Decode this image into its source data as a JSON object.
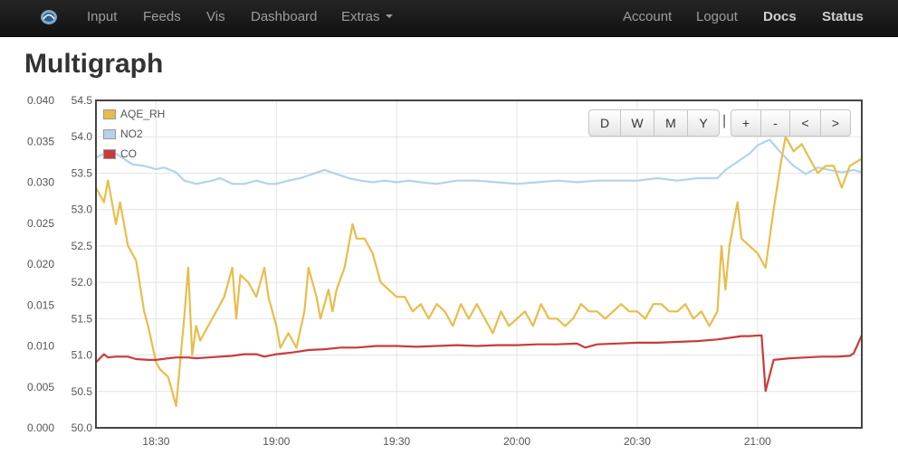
{
  "nav": {
    "left": [
      {
        "label": "Input",
        "name": "nav-input"
      },
      {
        "label": "Feeds",
        "name": "nav-feeds"
      },
      {
        "label": "Vis",
        "name": "nav-vis"
      },
      {
        "label": "Dashboard",
        "name": "nav-dashboard"
      },
      {
        "label": "Extras",
        "name": "nav-extras"
      }
    ],
    "right": [
      {
        "label": "Account",
        "name": "nav-account"
      },
      {
        "label": "Logout",
        "name": "nav-logout"
      },
      {
        "label": "Docs",
        "name": "nav-docs"
      },
      {
        "label": "Status",
        "name": "nav-status"
      }
    ],
    "logo_icon": "emoncms-logo-icon"
  },
  "page_title": "Multigraph",
  "range_buttons": [
    "D",
    "W",
    "M",
    "Y"
  ],
  "nav_buttons": [
    "+",
    "-",
    "<",
    ">"
  ],
  "separator": "|",
  "colors": {
    "AQE_RH": "#e8bd4a",
    "NO2": "#b1d3ec",
    "CO": "#c93b3b",
    "navbar": "#1b1b1b"
  },
  "chart_data": {
    "type": "line",
    "title": "",
    "x_ticks": [
      "18:30",
      "19:00",
      "19:30",
      "20:00",
      "20:30",
      "21:00"
    ],
    "left_axis_ticks": [
      "0.040",
      "0.035",
      "0.030",
      "0.025",
      "0.020",
      "0.015",
      "0.010",
      "0.005",
      "0.000"
    ],
    "right_axis_ticks": [
      "54.5",
      "54.0",
      "53.5",
      "53.0",
      "52.5",
      "52.0",
      "51.5",
      "51.0",
      "50.5",
      "50.0"
    ],
    "xlim": [
      "18:15",
      "21:26"
    ],
    "left_ylim": [
      0,
      0.04
    ],
    "right_ylim": [
      50,
      54.5
    ],
    "grid": true,
    "legend_position": "top-left",
    "series": [
      {
        "name": "AQE_RH",
        "axis": "right",
        "points": [
          [
            "18:15",
            53.3
          ],
          [
            "18:17",
            53.1
          ],
          [
            "18:18",
            53.4
          ],
          [
            "18:20",
            52.8
          ],
          [
            "18:21",
            53.1
          ],
          [
            "18:23",
            52.5
          ],
          [
            "18:25",
            52.3
          ],
          [
            "18:27",
            51.6
          ],
          [
            "18:28",
            51.4
          ],
          [
            "18:30",
            50.9
          ],
          [
            "18:31",
            50.8
          ],
          [
            "18:33",
            50.7
          ],
          [
            "18:34",
            50.5
          ],
          [
            "18:35",
            50.3
          ],
          [
            "18:37",
            51.5
          ],
          [
            "18:38",
            52.2
          ],
          [
            "18:39",
            51.0
          ],
          [
            "18:40",
            51.4
          ],
          [
            "18:41",
            51.2
          ],
          [
            "18:43",
            51.4
          ],
          [
            "18:45",
            51.6
          ],
          [
            "18:47",
            51.8
          ],
          [
            "18:49",
            52.2
          ],
          [
            "18:50",
            51.5
          ],
          [
            "18:51",
            52.1
          ],
          [
            "18:53",
            52.0
          ],
          [
            "18:55",
            51.8
          ],
          [
            "18:57",
            52.2
          ],
          [
            "18:58",
            51.8
          ],
          [
            "19:00",
            51.4
          ],
          [
            "19:01",
            51.1
          ],
          [
            "19:03",
            51.3
          ],
          [
            "19:05",
            51.1
          ],
          [
            "19:07",
            51.6
          ],
          [
            "19:08",
            52.2
          ],
          [
            "19:10",
            51.8
          ],
          [
            "19:11",
            51.5
          ],
          [
            "19:13",
            51.9
          ],
          [
            "19:14",
            51.6
          ],
          [
            "19:15",
            51.9
          ],
          [
            "19:17",
            52.2
          ],
          [
            "19:19",
            52.8
          ],
          [
            "19:20",
            52.6
          ],
          [
            "19:22",
            52.6
          ],
          [
            "19:24",
            52.4
          ],
          [
            "19:26",
            52.0
          ],
          [
            "19:28",
            51.9
          ],
          [
            "19:30",
            51.8
          ],
          [
            "19:32",
            51.8
          ],
          [
            "19:34",
            51.6
          ],
          [
            "19:36",
            51.7
          ],
          [
            "19:38",
            51.5
          ],
          [
            "19:40",
            51.7
          ],
          [
            "19:42",
            51.6
          ],
          [
            "19:44",
            51.4
          ],
          [
            "19:46",
            51.7
          ],
          [
            "19:48",
            51.5
          ],
          [
            "19:50",
            51.7
          ],
          [
            "19:52",
            51.5
          ],
          [
            "19:54",
            51.3
          ],
          [
            "19:56",
            51.6
          ],
          [
            "19:58",
            51.4
          ],
          [
            "20:00",
            51.5
          ],
          [
            "20:02",
            51.6
          ],
          [
            "20:04",
            51.4
          ],
          [
            "20:06",
            51.7
          ],
          [
            "20:08",
            51.5
          ],
          [
            "20:10",
            51.5
          ],
          [
            "20:12",
            51.4
          ],
          [
            "20:14",
            51.5
          ],
          [
            "20:16",
            51.7
          ],
          [
            "20:18",
            51.6
          ],
          [
            "20:20",
            51.6
          ],
          [
            "20:22",
            51.5
          ],
          [
            "20:24",
            51.6
          ],
          [
            "20:26",
            51.7
          ],
          [
            "20:28",
            51.6
          ],
          [
            "20:30",
            51.6
          ],
          [
            "20:32",
            51.5
          ],
          [
            "20:34",
            51.7
          ],
          [
            "20:36",
            51.7
          ],
          [
            "20:38",
            51.6
          ],
          [
            "20:40",
            51.6
          ],
          [
            "20:42",
            51.7
          ],
          [
            "20:44",
            51.5
          ],
          [
            "20:46",
            51.6
          ],
          [
            "20:48",
            51.4
          ],
          [
            "20:50",
            51.6
          ],
          [
            "20:51",
            52.5
          ],
          [
            "20:52",
            51.9
          ],
          [
            "20:53",
            52.5
          ],
          [
            "20:55",
            53.1
          ],
          [
            "20:56",
            52.6
          ],
          [
            "20:58",
            52.5
          ],
          [
            "21:00",
            52.4
          ],
          [
            "21:02",
            52.2
          ],
          [
            "21:04",
            53.0
          ],
          [
            "21:06",
            53.7
          ],
          [
            "21:07",
            54.0
          ],
          [
            "21:09",
            53.8
          ],
          [
            "21:11",
            53.9
          ],
          [
            "21:13",
            53.7
          ],
          [
            "21:15",
            53.5
          ],
          [
            "21:17",
            53.6
          ],
          [
            "21:19",
            53.6
          ],
          [
            "21:21",
            53.3
          ],
          [
            "21:23",
            53.6
          ],
          [
            "21:26",
            53.7
          ]
        ]
      },
      {
        "name": "NO2",
        "axis": "left",
        "points": [
          [
            "18:15",
            0.033
          ],
          [
            "18:17",
            0.0335
          ],
          [
            "18:20",
            0.0335
          ],
          [
            "18:24",
            0.0322
          ],
          [
            "18:27",
            0.032
          ],
          [
            "18:30",
            0.0316
          ],
          [
            "18:32",
            0.0318
          ],
          [
            "18:35",
            0.0312
          ],
          [
            "18:37",
            0.0302
          ],
          [
            "18:40",
            0.0298
          ],
          [
            "18:44",
            0.0302
          ],
          [
            "18:46",
            0.0305
          ],
          [
            "18:49",
            0.0298
          ],
          [
            "18:52",
            0.0298
          ],
          [
            "18:55",
            0.0302
          ],
          [
            "18:58",
            0.0298
          ],
          [
            "19:00",
            0.0298
          ],
          [
            "19:03",
            0.0302
          ],
          [
            "19:06",
            0.0305
          ],
          [
            "19:09",
            0.031
          ],
          [
            "19:12",
            0.0315
          ],
          [
            "19:15",
            0.031
          ],
          [
            "19:18",
            0.0305
          ],
          [
            "19:21",
            0.0302
          ],
          [
            "19:24",
            0.03
          ],
          [
            "19:27",
            0.0302
          ],
          [
            "19:30",
            0.03
          ],
          [
            "19:33",
            0.0302
          ],
          [
            "19:36",
            0.03
          ],
          [
            "19:40",
            0.0298
          ],
          [
            "19:45",
            0.0302
          ],
          [
            "19:50",
            0.0302
          ],
          [
            "19:55",
            0.03
          ],
          [
            "20:00",
            0.0298
          ],
          [
            "20:05",
            0.03
          ],
          [
            "20:10",
            0.0302
          ],
          [
            "20:15",
            0.03
          ],
          [
            "20:20",
            0.0302
          ],
          [
            "20:25",
            0.0302
          ],
          [
            "20:30",
            0.0302
          ],
          [
            "20:35",
            0.0305
          ],
          [
            "20:40",
            0.0302
          ],
          [
            "20:45",
            0.0305
          ],
          [
            "20:50",
            0.0305
          ],
          [
            "20:52",
            0.0315
          ],
          [
            "20:55",
            0.0325
          ],
          [
            "20:58",
            0.0335
          ],
          [
            "21:00",
            0.0345
          ],
          [
            "21:03",
            0.0352
          ],
          [
            "21:06",
            0.0335
          ],
          [
            "21:09",
            0.032
          ],
          [
            "21:12",
            0.031
          ],
          [
            "21:15",
            0.0318
          ],
          [
            "21:18",
            0.0315
          ],
          [
            "21:21",
            0.0312
          ],
          [
            "21:24",
            0.0315
          ],
          [
            "21:26",
            0.0312
          ]
        ]
      },
      {
        "name": "CO",
        "axis": "left",
        "points": [
          [
            "18:15",
            0.008
          ],
          [
            "18:16",
            0.0085
          ],
          [
            "18:17",
            0.009
          ],
          [
            "18:18",
            0.0086
          ],
          [
            "18:20",
            0.0087
          ],
          [
            "18:23",
            0.0087
          ],
          [
            "18:25",
            0.0084
          ],
          [
            "18:28",
            0.0083
          ],
          [
            "18:30",
            0.0083
          ],
          [
            "18:33",
            0.0085
          ],
          [
            "18:35",
            0.0086
          ],
          [
            "18:38",
            0.0086
          ],
          [
            "18:40",
            0.0085
          ],
          [
            "18:43",
            0.0086
          ],
          [
            "18:46",
            0.0087
          ],
          [
            "18:49",
            0.0088
          ],
          [
            "18:52",
            0.009
          ],
          [
            "18:55",
            0.009
          ],
          [
            "18:57",
            0.0087
          ],
          [
            "19:00",
            0.009
          ],
          [
            "19:04",
            0.0092
          ],
          [
            "19:08",
            0.0095
          ],
          [
            "19:12",
            0.0096
          ],
          [
            "19:16",
            0.0098
          ],
          [
            "19:20",
            0.0098
          ],
          [
            "19:25",
            0.01
          ],
          [
            "19:30",
            0.01
          ],
          [
            "19:35",
            0.0099
          ],
          [
            "19:40",
            0.01
          ],
          [
            "19:45",
            0.0101
          ],
          [
            "19:50",
            0.01
          ],
          [
            "19:55",
            0.0101
          ],
          [
            "20:00",
            0.0101
          ],
          [
            "20:05",
            0.0102
          ],
          [
            "20:10",
            0.0102
          ],
          [
            "20:15",
            0.0103
          ],
          [
            "20:17",
            0.0098
          ],
          [
            "20:20",
            0.0102
          ],
          [
            "20:25",
            0.0103
          ],
          [
            "20:30",
            0.0104
          ],
          [
            "20:35",
            0.0104
          ],
          [
            "20:40",
            0.0105
          ],
          [
            "20:45",
            0.0106
          ],
          [
            "20:50",
            0.0108
          ],
          [
            "20:53",
            0.011
          ],
          [
            "20:56",
            0.0112
          ],
          [
            "20:58",
            0.0112
          ],
          [
            "21:01",
            0.0113
          ],
          [
            "21:02",
            0.0045
          ],
          [
            "21:04",
            0.0083
          ],
          [
            "21:08",
            0.0085
          ],
          [
            "21:12",
            0.0086
          ],
          [
            "21:16",
            0.0087
          ],
          [
            "21:20",
            0.0087
          ],
          [
            "21:23",
            0.0088
          ],
          [
            "21:24",
            0.0091
          ],
          [
            "21:26",
            0.0113
          ]
        ]
      }
    ]
  }
}
